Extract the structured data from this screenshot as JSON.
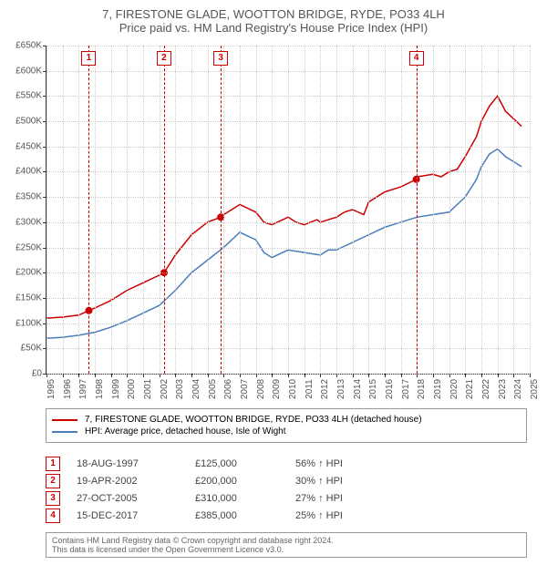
{
  "title": {
    "main": "7, FIRESTONE GLADE, WOOTTON BRIDGE, RYDE, PO33 4LH",
    "sub": "Price paid vs. HM Land Registry's House Price Index (HPI)"
  },
  "chart": {
    "type": "line",
    "background_color": "#ffffff",
    "grid_color": "#cccccc",
    "axis_color": "#333333",
    "x_min": 1995,
    "x_max": 2025,
    "x_tick_step": 1,
    "y_min": 0,
    "y_max": 650000,
    "y_tick_step": 50000,
    "y_tick_labels": [
      "£0",
      "£50K",
      "£100K",
      "£150K",
      "£200K",
      "£250K",
      "£300K",
      "£350K",
      "£400K",
      "£450K",
      "£500K",
      "£550K",
      "£600K",
      "£650K"
    ],
    "x_tick_labels": [
      "1995",
      "1996",
      "1997",
      "1998",
      "1999",
      "2000",
      "2001",
      "2002",
      "2003",
      "2004",
      "2005",
      "2006",
      "2007",
      "2008",
      "2009",
      "2010",
      "2011",
      "2012",
      "2013",
      "2014",
      "2015",
      "2016",
      "2017",
      "2018",
      "2019",
      "2020",
      "2021",
      "2022",
      "2023",
      "2024",
      "2025"
    ],
    "series_red": {
      "label": "7, FIRESTONE GLADE, WOOTTON BRIDGE, RYDE, PO33 4LH (detached house)",
      "color": "#cc0000",
      "line_width": 1.5,
      "points": [
        [
          1995,
          110000
        ],
        [
          1996,
          112000
        ],
        [
          1997,
          116000
        ],
        [
          1997.63,
          125000
        ],
        [
          1998,
          130000
        ],
        [
          1999,
          145000
        ],
        [
          2000,
          165000
        ],
        [
          2001,
          180000
        ],
        [
          2002,
          195000
        ],
        [
          2002.3,
          200000
        ],
        [
          2003,
          235000
        ],
        [
          2004,
          275000
        ],
        [
          2005,
          300000
        ],
        [
          2005.82,
          310000
        ],
        [
          2006,
          315000
        ],
        [
          2007,
          335000
        ],
        [
          2008,
          320000
        ],
        [
          2008.5,
          300000
        ],
        [
          2009,
          295000
        ],
        [
          2010,
          310000
        ],
        [
          2010.5,
          300000
        ],
        [
          2011,
          295000
        ],
        [
          2011.8,
          305000
        ],
        [
          2012,
          300000
        ],
        [
          2013,
          310000
        ],
        [
          2013.5,
          320000
        ],
        [
          2014,
          325000
        ],
        [
          2014.7,
          315000
        ],
        [
          2015,
          340000
        ],
        [
          2016,
          360000
        ],
        [
          2017,
          370000
        ],
        [
          2017.96,
          385000
        ],
        [
          2018,
          390000
        ],
        [
          2019,
          395000
        ],
        [
          2019.5,
          390000
        ],
        [
          2020,
          400000
        ],
        [
          2020.5,
          405000
        ],
        [
          2021,
          430000
        ],
        [
          2021.7,
          470000
        ],
        [
          2022,
          500000
        ],
        [
          2022.5,
          530000
        ],
        [
          2023,
          550000
        ],
        [
          2023.5,
          520000
        ],
        [
          2024,
          505000
        ],
        [
          2024.5,
          490000
        ]
      ]
    },
    "series_blue": {
      "label": "HPI: Average price, detached house, Isle of Wight",
      "color": "#4a7ebb",
      "line_width": 1.5,
      "points": [
        [
          1995,
          70000
        ],
        [
          1996,
          72000
        ],
        [
          1997,
          76000
        ],
        [
          1998,
          82000
        ],
        [
          1999,
          92000
        ],
        [
          2000,
          105000
        ],
        [
          2001,
          120000
        ],
        [
          2002,
          135000
        ],
        [
          2003,
          165000
        ],
        [
          2004,
          200000
        ],
        [
          2005,
          225000
        ],
        [
          2006,
          250000
        ],
        [
          2007,
          280000
        ],
        [
          2008,
          265000
        ],
        [
          2008.5,
          240000
        ],
        [
          2009,
          230000
        ],
        [
          2010,
          245000
        ],
        [
          2011,
          240000
        ],
        [
          2012,
          235000
        ],
        [
          2012.5,
          245000
        ],
        [
          2013,
          245000
        ],
        [
          2014,
          260000
        ],
        [
          2015,
          275000
        ],
        [
          2016,
          290000
        ],
        [
          2017,
          300000
        ],
        [
          2018,
          310000
        ],
        [
          2019,
          315000
        ],
        [
          2020,
          320000
        ],
        [
          2021,
          350000
        ],
        [
          2021.7,
          385000
        ],
        [
          2022,
          410000
        ],
        [
          2022.5,
          435000
        ],
        [
          2023,
          445000
        ],
        [
          2023.5,
          430000
        ],
        [
          2024,
          420000
        ],
        [
          2024.5,
          410000
        ]
      ]
    },
    "sale_markers": [
      {
        "num": "1",
        "year": 1997.63,
        "price": 125000
      },
      {
        "num": "2",
        "year": 2002.3,
        "price": 200000
      },
      {
        "num": "3",
        "year": 2005.82,
        "price": 310000
      },
      {
        "num": "4",
        "year": 2017.96,
        "price": 385000
      }
    ],
    "marker_color": "#cc0000",
    "marker_radius": 4
  },
  "legend": {
    "red_label": "7, FIRESTONE GLADE, WOOTTON BRIDGE, RYDE, PO33 4LH (detached house)",
    "red_color": "#cc0000",
    "blue_label": "HPI: Average price, detached house, Isle of Wight",
    "blue_color": "#4a7ebb"
  },
  "sales_table": [
    {
      "num": "1",
      "date": "18-AUG-1997",
      "price": "£125,000",
      "hpi": "56% ↑ HPI"
    },
    {
      "num": "2",
      "date": "19-APR-2002",
      "price": "£200,000",
      "hpi": "30% ↑ HPI"
    },
    {
      "num": "3",
      "date": "27-OCT-2005",
      "price": "£310,000",
      "hpi": "27% ↑ HPI"
    },
    {
      "num": "4",
      "date": "15-DEC-2017",
      "price": "£385,000",
      "hpi": "25% ↑ HPI"
    }
  ],
  "footer": {
    "line1": "Contains HM Land Registry data © Crown copyright and database right 2024.",
    "line2": "This data is licensed under the Open Government Licence v3.0."
  }
}
